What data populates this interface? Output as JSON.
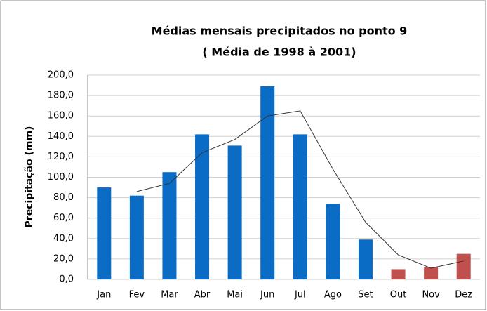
{
  "chart_data": {
    "type": "bar",
    "title": "Médias mensais precipitados no ponto 9",
    "subtitle": "( Média de 1998 à 2001)",
    "y_label": "Precipitação (mm)",
    "categories": [
      "Jan",
      "Fev",
      "Mar",
      "Abr",
      "Mai",
      "Jun",
      "Jul",
      "Ago",
      "Set",
      "Out",
      "Nov",
      "Dez"
    ],
    "values": [
      90,
      82,
      105,
      142,
      131,
      189,
      142,
      74,
      39,
      10,
      12,
      25
    ],
    "colors": [
      "#0a6cc4",
      "#0a6cc4",
      "#0a6cc4",
      "#0a6cc4",
      "#0a6cc4",
      "#0a6cc4",
      "#0a6cc4",
      "#0a6cc4",
      "#0a6cc4",
      "#c0504d",
      "#c0504d",
      "#c0504d"
    ],
    "line_values": [
      null,
      86,
      94,
      124,
      137,
      160,
      165,
      108,
      56,
      24,
      11,
      18
    ],
    "line_color": "#333333",
    "ylim": [
      0,
      200
    ],
    "yticks": [
      {
        "value": 0,
        "label": "0,0"
      },
      {
        "value": 20,
        "label": "20,0"
      },
      {
        "value": 40,
        "label": "40,0"
      },
      {
        "value": 60,
        "label": "60,0"
      },
      {
        "value": 80,
        "label": "80,0"
      },
      {
        "value": 100,
        "label": "100,0"
      },
      {
        "value": 120,
        "label": "120,0"
      },
      {
        "value": 140,
        "label": "140,0"
      },
      {
        "value": 160,
        "label": "160,0"
      },
      {
        "value": 180,
        "label": "180,0"
      },
      {
        "value": 200,
        "label": "200,0"
      }
    ],
    "grid": true
  }
}
